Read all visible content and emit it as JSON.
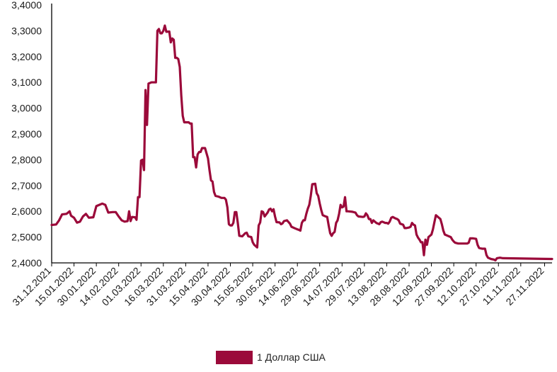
{
  "chart_data": {
    "type": "line",
    "ylim": [
      2.4,
      3.4
    ],
    "y_ticks": [
      "2,4000",
      "2,5000",
      "2,6000",
      "2,7000",
      "2,8000",
      "2,9000",
      "3,0000",
      "3,1000",
      "3,2000",
      "3,3000",
      "3,4000"
    ],
    "x_tick_labels": [
      "31.12.2021",
      "15.01.2022",
      "30.01.2022",
      "14.02.2022",
      "01.03.2022",
      "16.03.2022",
      "31.03.2022",
      "15.04.2022",
      "30.04.2022",
      "15.05.2022",
      "30.05.2022",
      "14.06.2022",
      "29.06.2022",
      "14.07.2022",
      "29.07.2022",
      "13.08.2022",
      "28.08.2022",
      "12.09.2022",
      "27.09.2022",
      "12.10.2022",
      "27.10.2022",
      "11.11.2022",
      "27.11.2022"
    ],
    "x_range": [
      "31.12.2021",
      "02.12.2022"
    ],
    "grid": false,
    "legend_position": "bottom-center",
    "series": [
      {
        "name": "1 Доллар США",
        "color": "#9b0a3a",
        "points": [
          [
            "31.12.2021",
            2.547
          ],
          [
            "03.01.2022",
            2.549
          ],
          [
            "05.01.2022",
            2.565
          ],
          [
            "07.01.2022",
            2.588
          ],
          [
            "10.01.2022",
            2.59
          ],
          [
            "12.01.2022",
            2.6
          ],
          [
            "13.01.2022",
            2.583
          ],
          [
            "15.01.2022",
            2.575
          ],
          [
            "17.01.2022",
            2.556
          ],
          [
            "19.01.2022",
            2.56
          ],
          [
            "21.01.2022",
            2.58
          ],
          [
            "23.01.2022",
            2.59
          ],
          [
            "25.01.2022",
            2.575
          ],
          [
            "28.01.2022",
            2.577
          ],
          [
            "30.01.2022",
            2.62
          ],
          [
            "01.02.2022",
            2.625
          ],
          [
            "03.02.2022",
            2.63
          ],
          [
            "05.02.2022",
            2.625
          ],
          [
            "07.02.2022",
            2.595
          ],
          [
            "10.02.2022",
            2.597
          ],
          [
            "12.02.2022",
            2.597
          ],
          [
            "14.02.2022",
            2.58
          ],
          [
            "16.02.2022",
            2.565
          ],
          [
            "18.02.2022",
            2.56
          ],
          [
            "20.02.2022",
            2.562
          ],
          [
            "21.02.2022",
            2.6
          ],
          [
            "22.02.2022",
            2.562
          ],
          [
            "23.02.2022",
            2.578
          ],
          [
            "25.02.2022",
            2.577
          ],
          [
            "26.02.2022",
            2.567
          ],
          [
            "27.02.2022",
            2.655
          ],
          [
            "28.02.2022",
            2.655
          ],
          [
            "01.03.2022",
            2.797
          ],
          [
            "02.03.2022",
            2.8
          ],
          [
            "03.03.2022",
            2.76
          ],
          [
            "04.03.2022",
            3.07
          ],
          [
            "05.03.2022",
            2.935
          ],
          [
            "06.03.2022",
            3.095
          ],
          [
            "08.03.2022",
            3.1
          ],
          [
            "10.03.2022",
            3.1
          ],
          [
            "11.03.2022",
            3.1
          ],
          [
            "12.03.2022",
            3.3
          ],
          [
            "13.03.2022",
            3.307
          ],
          [
            "14.03.2022",
            3.29
          ],
          [
            "15.03.2022",
            3.29
          ],
          [
            "16.03.2022",
            3.3
          ],
          [
            "17.03.2022",
            3.32
          ],
          [
            "18.03.2022",
            3.296
          ],
          [
            "20.03.2022",
            3.297
          ],
          [
            "21.03.2022",
            3.255
          ],
          [
            "22.03.2022",
            3.27
          ],
          [
            "23.03.2022",
            3.265
          ],
          [
            "24.03.2022",
            3.195
          ],
          [
            "25.03.2022",
            3.195
          ],
          [
            "26.03.2022",
            3.19
          ],
          [
            "27.03.2022",
            3.16
          ],
          [
            "28.03.2022",
            3.05
          ],
          [
            "29.03.2022",
            2.97
          ],
          [
            "30.03.2022",
            2.945
          ],
          [
            "02.04.2022",
            2.945
          ],
          [
            "03.04.2022",
            2.94
          ],
          [
            "04.04.2022",
            2.94
          ],
          [
            "05.04.2022",
            2.81
          ],
          [
            "06.04.2022",
            2.81
          ],
          [
            "07.04.2022",
            2.77
          ],
          [
            "08.04.2022",
            2.82
          ],
          [
            "09.04.2022",
            2.83
          ],
          [
            "10.04.2022",
            2.83
          ],
          [
            "11.04.2022",
            2.845
          ],
          [
            "13.04.2022",
            2.845
          ],
          [
            "15.04.2022",
            2.805
          ],
          [
            "16.04.2022",
            2.76
          ],
          [
            "17.04.2022",
            2.72
          ],
          [
            "18.04.2022",
            2.715
          ],
          [
            "19.04.2022",
            2.675
          ],
          [
            "20.04.2022",
            2.66
          ],
          [
            "22.04.2022",
            2.657
          ],
          [
            "24.04.2022",
            2.652
          ],
          [
            "26.04.2022",
            2.652
          ],
          [
            "27.04.2022",
            2.645
          ],
          [
            "28.04.2022",
            2.615
          ],
          [
            "29.04.2022",
            2.55
          ],
          [
            "30.04.2022",
            2.545
          ],
          [
            "01.05.2022",
            2.545
          ],
          [
            "02.05.2022",
            2.555
          ],
          [
            "03.05.2022",
            2.597
          ],
          [
            "04.05.2022",
            2.597
          ],
          [
            "05.05.2022",
            2.555
          ],
          [
            "06.05.2022",
            2.505
          ],
          [
            "08.05.2022",
            2.503
          ],
          [
            "10.05.2022",
            2.515
          ],
          [
            "11.05.2022",
            2.517
          ],
          [
            "12.05.2022",
            2.503
          ],
          [
            "14.05.2022",
            2.5
          ],
          [
            "15.05.2022",
            2.48
          ],
          [
            "16.05.2022",
            2.47
          ],
          [
            "17.05.2022",
            2.465
          ],
          [
            "18.05.2022",
            2.46
          ],
          [
            "19.05.2022",
            2.545
          ],
          [
            "20.05.2022",
            2.557
          ],
          [
            "21.05.2022",
            2.6
          ],
          [
            "22.05.2022",
            2.597
          ],
          [
            "23.05.2022",
            2.58
          ],
          [
            "25.05.2022",
            2.595
          ],
          [
            "26.05.2022",
            2.607
          ],
          [
            "27.05.2022",
            2.61
          ],
          [
            "28.05.2022",
            2.6
          ],
          [
            "29.05.2022",
            2.608
          ],
          [
            "30.05.2022",
            2.58
          ],
          [
            "31.05.2022",
            2.558
          ],
          [
            "02.06.2022",
            2.557
          ],
          [
            "03.06.2022",
            2.55
          ],
          [
            "04.06.2022",
            2.553
          ],
          [
            "05.06.2022",
            2.562
          ],
          [
            "07.06.2022",
            2.565
          ],
          [
            "09.06.2022",
            2.552
          ],
          [
            "10.06.2022",
            2.54
          ],
          [
            "12.06.2022",
            2.535
          ],
          [
            "14.06.2022",
            2.53
          ],
          [
            "15.06.2022",
            2.528
          ],
          [
            "16.06.2022",
            2.525
          ],
          [
            "17.06.2022",
            2.555
          ],
          [
            "18.06.2022",
            2.565
          ],
          [
            "19.06.2022",
            2.565
          ],
          [
            "20.06.2022",
            2.59
          ],
          [
            "21.06.2022",
            2.61
          ],
          [
            "22.06.2022",
            2.625
          ],
          [
            "23.06.2022",
            2.66
          ],
          [
            "24.06.2022",
            2.705
          ],
          [
            "26.06.2022",
            2.707
          ],
          [
            "27.06.2022",
            2.67
          ],
          [
            "28.06.2022",
            2.66
          ],
          [
            "29.06.2022",
            2.63
          ],
          [
            "30.06.2022",
            2.605
          ],
          [
            "01.07.2022",
            2.585
          ],
          [
            "03.07.2022",
            2.58
          ],
          [
            "04.07.2022",
            2.578
          ],
          [
            "05.07.2022",
            2.545
          ],
          [
            "06.07.2022",
            2.515
          ],
          [
            "07.07.2022",
            2.505
          ],
          [
            "08.07.2022",
            2.515
          ],
          [
            "09.07.2022",
            2.52
          ],
          [
            "10.07.2022",
            2.555
          ],
          [
            "11.07.2022",
            2.565
          ],
          [
            "12.07.2022",
            2.59
          ],
          [
            "13.07.2022",
            2.625
          ],
          [
            "14.07.2022",
            2.615
          ],
          [
            "15.07.2022",
            2.618
          ],
          [
            "16.07.2022",
            2.655
          ],
          [
            "17.07.2022",
            2.6
          ],
          [
            "18.07.2022",
            2.6
          ],
          [
            "21.07.2022",
            2.598
          ],
          [
            "23.07.2022",
            2.595
          ],
          [
            "24.07.2022",
            2.585
          ],
          [
            "25.07.2022",
            2.58
          ],
          [
            "28.07.2022",
            2.578
          ],
          [
            "29.07.2022",
            2.58
          ],
          [
            "30.07.2022",
            2.592
          ],
          [
            "31.07.2022",
            2.585
          ],
          [
            "01.08.2022",
            2.57
          ],
          [
            "02.08.2022",
            2.57
          ],
          [
            "03.08.2022",
            2.555
          ],
          [
            "04.08.2022",
            2.565
          ],
          [
            "06.08.2022",
            2.555
          ],
          [
            "08.08.2022",
            2.55
          ],
          [
            "09.08.2022",
            2.558
          ],
          [
            "10.08.2022",
            2.56
          ],
          [
            "12.08.2022",
            2.555
          ],
          [
            "13.08.2022",
            2.555
          ],
          [
            "14.08.2022",
            2.552
          ],
          [
            "15.08.2022",
            2.56
          ],
          [
            "16.08.2022",
            2.575
          ],
          [
            "17.08.2022",
            2.578
          ],
          [
            "19.08.2022",
            2.572
          ],
          [
            "20.08.2022",
            2.57
          ],
          [
            "21.08.2022",
            2.565
          ],
          [
            "22.08.2022",
            2.552
          ],
          [
            "24.08.2022",
            2.548
          ],
          [
            "25.08.2022",
            2.535
          ],
          [
            "26.08.2022",
            2.535
          ],
          [
            "28.08.2022",
            2.537
          ],
          [
            "29.08.2022",
            2.54
          ],
          [
            "30.08.2022",
            2.555
          ],
          [
            "31.08.2022",
            2.548
          ],
          [
            "01.09.2022",
            2.545
          ],
          [
            "02.09.2022",
            2.51
          ],
          [
            "03.09.2022",
            2.498
          ],
          [
            "04.09.2022",
            2.49
          ],
          [
            "05.09.2022",
            2.48
          ],
          [
            "06.09.2022",
            2.48
          ],
          [
            "07.09.2022",
            2.43
          ],
          [
            "08.09.2022",
            2.49
          ],
          [
            "09.09.2022",
            2.47
          ],
          [
            "10.09.2022",
            2.5
          ],
          [
            "11.09.2022",
            2.505
          ],
          [
            "12.09.2022",
            2.51
          ],
          [
            "13.09.2022",
            2.53
          ],
          [
            "14.09.2022",
            2.558
          ],
          [
            "15.09.2022",
            2.585
          ],
          [
            "16.09.2022",
            2.58
          ],
          [
            "17.09.2022",
            2.575
          ],
          [
            "18.09.2022",
            2.57
          ],
          [
            "19.09.2022",
            2.55
          ],
          [
            "20.09.2022",
            2.525
          ],
          [
            "21.09.2022",
            2.51
          ],
          [
            "23.09.2022",
            2.505
          ],
          [
            "25.09.2022",
            2.5
          ],
          [
            "26.09.2022",
            2.49
          ],
          [
            "27.09.2022",
            2.483
          ],
          [
            "28.09.2022",
            2.478
          ],
          [
            "30.09.2022",
            2.475
          ],
          [
            "02.10.2022",
            2.475
          ],
          [
            "04.10.2022",
            2.475
          ],
          [
            "06.10.2022",
            2.475
          ],
          [
            "07.10.2022",
            2.478
          ],
          [
            "08.10.2022",
            2.495
          ],
          [
            "10.10.2022",
            2.495
          ],
          [
            "12.10.2022",
            2.493
          ],
          [
            "13.10.2022",
            2.47
          ],
          [
            "14.10.2022",
            2.458
          ],
          [
            "16.10.2022",
            2.455
          ],
          [
            "18.10.2022",
            2.455
          ],
          [
            "19.10.2022",
            2.43
          ],
          [
            "20.10.2022",
            2.42
          ],
          [
            "22.10.2022",
            2.415
          ],
          [
            "24.10.2022",
            2.413
          ],
          [
            "25.10.2022",
            2.41
          ],
          [
            "26.10.2022",
            2.418
          ],
          [
            "28.10.2022",
            2.42
          ],
          [
            "30.10.2022",
            2.418
          ],
          [
            "02.12.2022",
            2.415
          ]
        ]
      }
    ]
  }
}
